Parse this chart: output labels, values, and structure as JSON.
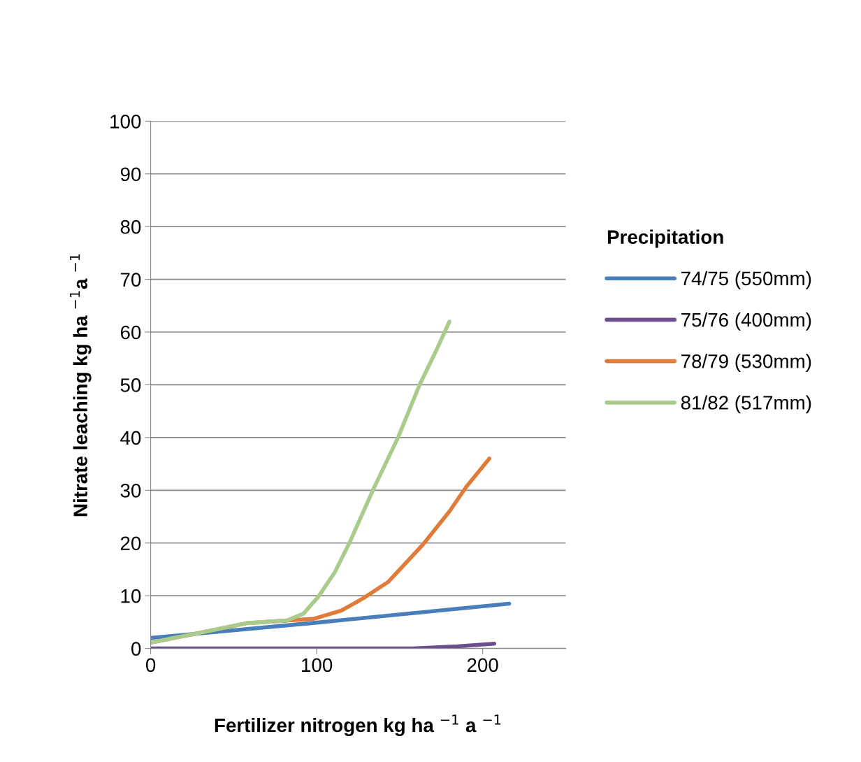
{
  "chart_data": {
    "type": "line",
    "xlabel": "Fertilizer nitrogen kg ha $^{−1}$ a $^{−1}$",
    "ylabel": "Nitrate leaching kg ha $^{−1}$a $^{−1}$",
    "legend_title": "Precipitation",
    "series": [
      {
        "name": "74/75 (550mm)",
        "color": "#4a7ebb",
        "x": [
          0,
          100,
          216
        ],
        "values": [
          2.0,
          4.9,
          8.5
        ]
      },
      {
        "name": "75/76 (400mm)",
        "color": "#6b4f8f",
        "x": [
          0,
          60,
          125,
          158,
          185,
          207
        ],
        "values": [
          0,
          0,
          0,
          0,
          0.4,
          0.9
        ]
      },
      {
        "name": "78/79 (530mm)",
        "color": "#e07b39",
        "x": [
          0,
          30,
          58,
          82,
          98,
          115,
          128,
          143,
          164,
          180,
          190,
          204
        ],
        "values": [
          1.1,
          3.0,
          4.8,
          5.3,
          5.6,
          7.2,
          9.5,
          12.6,
          19.7,
          26.0,
          30.6,
          36.0
        ]
      },
      {
        "name": "81/82 (517mm)",
        "color": "#a9cb8c",
        "x": [
          0,
          30,
          58,
          82,
          92,
          101,
          111,
          120,
          134,
          149,
          162,
          172,
          180
        ],
        "values": [
          1.1,
          3.0,
          4.8,
          5.3,
          6.6,
          9.8,
          14.5,
          20.2,
          30.1,
          40.0,
          50.0,
          56.5,
          62.0
        ]
      }
    ],
    "xlim": [
      0,
      250
    ],
    "xticks": [
      0,
      100,
      200
    ],
    "ylim": [
      0,
      100
    ],
    "yticks": [
      0,
      10,
      20,
      30,
      40,
      50,
      60,
      70,
      80,
      90,
      100
    ],
    "grid": "y",
    "legend": "right",
    "marker": "none",
    "line_style": "solid"
  }
}
